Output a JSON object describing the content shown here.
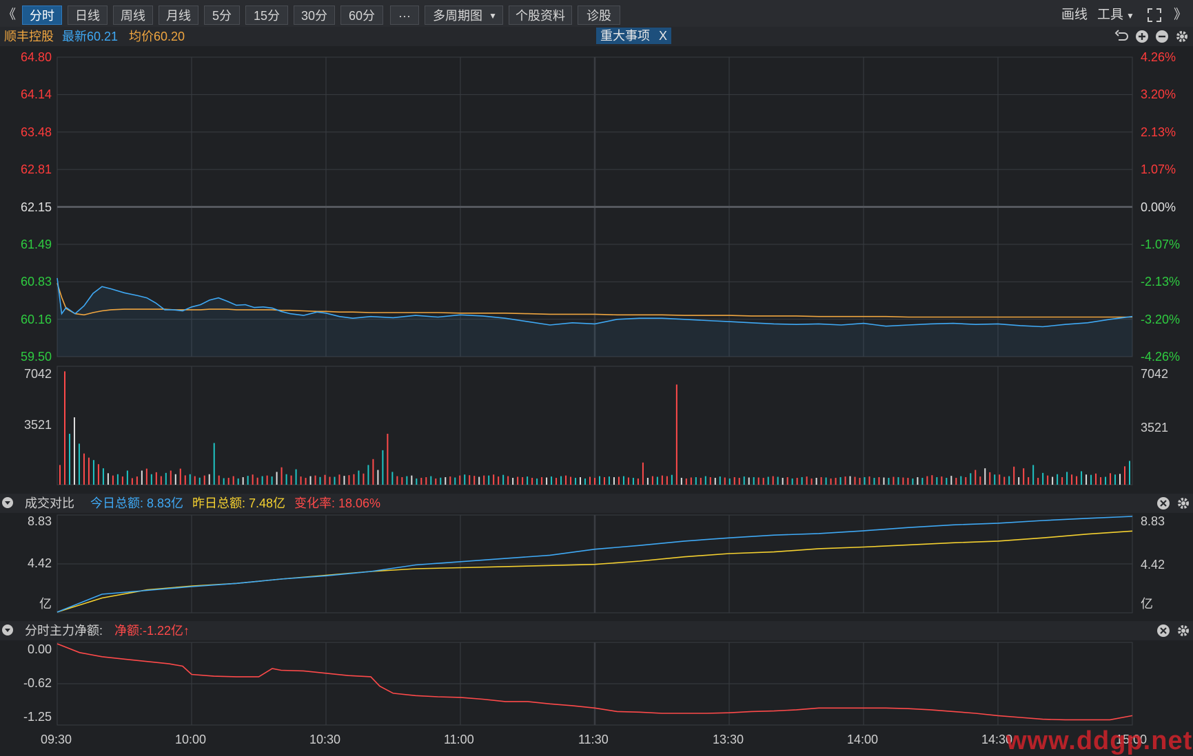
{
  "toolbar": {
    "left_arrow": "《",
    "right_arrow": "》",
    "period_buttons": [
      "分时",
      "日线",
      "周线",
      "月线",
      "5分",
      "15分",
      "30分",
      "60分"
    ],
    "more_button": "···",
    "multi_period": "多周期图",
    "stock_info": "个股资料",
    "diagnose": "诊股",
    "draw_line": "画线",
    "tools": "工具"
  },
  "quote": {
    "name": "顺丰控股",
    "latest_label": "最新60.21",
    "avg_label": "均价60.20",
    "event_badge": "重大事项",
    "event_close": "X"
  },
  "price_axis": {
    "left": [
      "64.80",
      "64.14",
      "63.48",
      "62.81",
      "62.15",
      "61.49",
      "60.83",
      "60.16",
      "59.50"
    ],
    "right": [
      "4.26%",
      "3.20%",
      "2.13%",
      "1.07%",
      "0.00%",
      "-1.07%",
      "-2.13%",
      "-3.20%",
      "-4.26%"
    ],
    "colors": {
      "up": "#ff3b3b",
      "flat": "#e0e0e0",
      "down": "#2ecc40"
    }
  },
  "volume_axis": {
    "labels": [
      "7042",
      "3521"
    ]
  },
  "turnover_panel": {
    "title": "成交对比",
    "today": "今日总额: 8.83亿",
    "yesterday": "昨日总额: 7.48亿",
    "change": "变化率: 18.06%",
    "axis": [
      "8.83",
      "4.42",
      "亿"
    ]
  },
  "netflow_panel": {
    "title": "分时主力净额:",
    "net": "净额:-1.22亿",
    "arrow": "↑",
    "axis": [
      "0.00",
      "-0.62",
      "-1.25"
    ]
  },
  "time_axis": [
    "09:30",
    "10:00",
    "10:30",
    "11:00",
    "11:30",
    "13:30",
    "14:00",
    "14:30",
    "15:00"
  ],
  "watermark": "www.ddgp.net",
  "colors": {
    "price_line": "#3fa9f5",
    "avg_line": "#f0a640",
    "today_line": "#3fa9f5",
    "yesterday_line": "#f5d130",
    "net_line": "#ff4a4a",
    "vol_up": "#ff4a4a",
    "vol_down": "#1fc5c5",
    "vol_flat": "#e0e0e0",
    "grid": "#3a3d42"
  },
  "chart_data": [
    {
      "type": "line",
      "name": "price",
      "x": [
        0,
        1,
        2,
        4,
        6,
        8,
        10,
        12,
        15,
        18,
        20,
        22,
        24,
        26,
        28,
        30,
        32,
        34,
        36,
        38,
        40,
        42,
        44,
        46,
        48,
        50,
        52,
        55,
        58,
        60,
        63,
        66,
        70,
        75,
        80,
        85,
        90,
        95,
        100,
        105,
        110,
        115,
        120,
        125,
        130,
        135,
        140,
        145,
        150,
        155,
        160,
        165,
        170,
        175,
        180,
        185,
        190,
        195,
        200,
        205,
        210,
        215,
        220,
        225,
        230,
        235,
        240
      ],
      "series": [
        {
          "name": "最新",
          "values": [
            60.89,
            60.26,
            60.37,
            60.26,
            60.4,
            60.62,
            60.74,
            60.7,
            60.63,
            60.58,
            60.54,
            60.45,
            60.33,
            60.33,
            60.31,
            60.38,
            60.42,
            60.5,
            60.54,
            60.48,
            60.41,
            60.42,
            60.37,
            60.38,
            60.36,
            60.3,
            60.26,
            60.23,
            60.29,
            60.27,
            60.21,
            60.18,
            60.21,
            60.19,
            60.23,
            60.2,
            60.24,
            60.22,
            60.18,
            60.12,
            60.06,
            60.1,
            60.08,
            60.16,
            60.18,
            60.18,
            60.16,
            60.14,
            60.12,
            60.1,
            60.08,
            60.07,
            60.08,
            60.06,
            60.09,
            60.04,
            60.06,
            60.08,
            60.09,
            60.07,
            60.08,
            60.05,
            60.03,
            60.07,
            60.1,
            60.16,
            60.21
          ]
        },
        {
          "name": "均价",
          "values": [
            60.8,
            60.55,
            60.35,
            60.26,
            60.24,
            60.28,
            60.31,
            60.33,
            60.34,
            60.34,
            60.34,
            60.34,
            60.34,
            60.33,
            60.33,
            60.33,
            60.33,
            60.34,
            60.34,
            60.34,
            60.33,
            60.33,
            60.33,
            60.33,
            60.33,
            60.32,
            60.32,
            60.31,
            60.3,
            60.3,
            60.29,
            60.29,
            60.28,
            60.28,
            60.28,
            60.28,
            60.27,
            60.27,
            60.27,
            60.26,
            60.25,
            60.25,
            60.25,
            60.24,
            60.24,
            60.24,
            60.23,
            60.23,
            60.23,
            60.22,
            60.22,
            60.22,
            60.21,
            60.21,
            60.21,
            60.21,
            60.2,
            60.2,
            60.2,
            60.2,
            60.2,
            60.2,
            60.2,
            60.2,
            60.2,
            60.2,
            60.2
          ]
        }
      ],
      "ylim": [
        59.5,
        64.8
      ],
      "ref_close": 62.15
    },
    {
      "type": "bar",
      "name": "volume",
      "ylim": [
        0,
        7042
      ],
      "values": [
        1200,
        6900,
        3100,
        4100,
        2500,
        1900,
        1650,
        1500,
        1250,
        1000,
        700,
        560,
        640,
        500,
        860,
        400,
        500,
        860,
        980,
        640,
        760,
        520,
        720,
        860,
        640,
        980,
        570,
        640,
        520,
        430,
        560,
        640,
        2540,
        560,
        400,
        420,
        520,
        380,
        460,
        540,
        620,
        430,
        520,
        560,
        500,
        780,
        1060,
        640,
        560,
        940,
        500,
        420,
        520,
        560,
        470,
        600,
        480,
        480,
        620,
        540,
        580,
        640,
        860,
        680,
        1200,
        1560,
        900,
        2100,
        3100,
        780,
        520,
        460,
        520,
        560,
        380,
        420,
        460,
        520,
        380,
        430,
        460,
        500,
        440,
        560,
        620,
        580,
        540,
        480,
        560,
        560,
        620,
        500,
        600,
        520,
        420,
        480,
        460,
        500,
        420,
        380,
        460,
        440,
        500,
        420,
        520,
        560,
        480,
        420,
        460,
        380,
        480,
        420,
        520,
        460,
        500,
        460,
        480,
        520,
        440,
        420,
        380,
        1350,
        420,
        520,
        480,
        560,
        520,
        600,
        6100,
        420,
        380,
        440,
        460,
        420,
        520,
        460,
        420,
        500,
        440,
        380,
        460,
        420,
        500,
        440,
        460,
        440,
        420,
        480,
        520,
        480,
        420,
        460,
        380,
        420,
        460,
        500,
        380,
        420,
        460,
        440,
        380,
        420,
        460,
        500,
        520,
        480,
        420,
        460,
        500,
        420,
        460,
        440,
        420,
        480,
        460,
        440,
        420,
        380,
        460,
        420,
        520,
        580,
        460,
        500,
        420,
        540,
        420,
        520,
        460,
        700,
        900,
        500,
        1000,
        760,
        620,
        620,
        480,
        520,
        1100,
        460,
        1000,
        460,
        1200,
        420,
        720,
        560,
        480,
        640,
        460,
        780,
        620,
        520,
        820,
        620,
        600,
        680,
        460,
        480,
        700,
        620,
        660,
        1120,
        1450
      ],
      "directions": "mixed"
    },
    {
      "type": "line",
      "name": "turnover_compare",
      "x": [
        0,
        10,
        20,
        30,
        40,
        50,
        60,
        70,
        80,
        90,
        100,
        110,
        120,
        130,
        140,
        150,
        160,
        170,
        180,
        190,
        200,
        210,
        220,
        230,
        240
      ],
      "series": [
        {
          "name": "今日总额",
          "values": [
            0.0,
            1.65,
            2.0,
            2.35,
            2.65,
            3.05,
            3.35,
            3.75,
            4.35,
            4.65,
            4.95,
            5.25,
            5.8,
            6.15,
            6.55,
            6.85,
            7.1,
            7.25,
            7.5,
            7.8,
            8.05,
            8.2,
            8.45,
            8.65,
            8.83
          ]
        },
        {
          "name": "昨日总额",
          "values": [
            0.0,
            1.3,
            2.05,
            2.4,
            2.65,
            3.05,
            3.4,
            3.75,
            4.0,
            4.1,
            4.2,
            4.3,
            4.4,
            4.7,
            5.1,
            5.4,
            5.55,
            5.85,
            6.0,
            6.2,
            6.4,
            6.55,
            6.85,
            7.2,
            7.48
          ]
        }
      ],
      "ylim": [
        0,
        8.83
      ],
      "ylabel": "亿"
    },
    {
      "type": "line",
      "name": "main_net_flow",
      "x": [
        0,
        5,
        10,
        15,
        20,
        25,
        28,
        30,
        35,
        40,
        45,
        48,
        50,
        55,
        60,
        65,
        70,
        72,
        75,
        80,
        85,
        90,
        95,
        100,
        105,
        110,
        115,
        120,
        125,
        130,
        135,
        140,
        145,
        150,
        155,
        160,
        165,
        170,
        175,
        180,
        185,
        190,
        195,
        200,
        205,
        210,
        215,
        220,
        225,
        230,
        235,
        240
      ],
      "series": [
        {
          "name": "净额",
          "values": [
            0.0,
            -0.15,
            -0.22,
            -0.26,
            -0.3,
            -0.34,
            -0.38,
            -0.52,
            -0.55,
            -0.56,
            -0.56,
            -0.42,
            -0.45,
            -0.46,
            -0.5,
            -0.54,
            -0.56,
            -0.72,
            -0.84,
            -0.88,
            -0.9,
            -0.91,
            -0.94,
            -0.98,
            -0.98,
            -1.02,
            -1.05,
            -1.09,
            -1.15,
            -1.16,
            -1.18,
            -1.18,
            -1.18,
            -1.17,
            -1.15,
            -1.14,
            -1.12,
            -1.09,
            -1.09,
            -1.09,
            -1.09,
            -1.1,
            -1.12,
            -1.15,
            -1.18,
            -1.22,
            -1.25,
            -1.28,
            -1.29,
            -1.29,
            -1.29,
            -1.22
          ]
        }
      ],
      "ylim": [
        -1.25,
        0.0
      ]
    }
  ]
}
